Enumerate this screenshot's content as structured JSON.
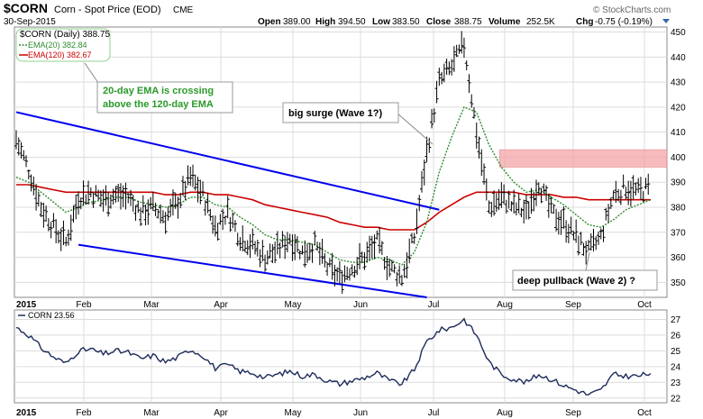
{
  "header": {
    "symbol": "$CORN",
    "description": "Corn - Spot Price (EOD)",
    "exchange": "CME",
    "date": "30-Sep-2015",
    "open_label": "Open",
    "open": "389.00",
    "high_label": "High",
    "high": "394.50",
    "low_label": "Low",
    "low": "383.50",
    "close_label": "Close",
    "close": "388.75",
    "volume_label": "Volume",
    "volume": "252.5K",
    "chg_label": "Chg",
    "chg": "-0.75 (-0.19%)",
    "watermark": "© StockCharts.com"
  },
  "colors": {
    "price": "#000000",
    "ema20": "#2e8b2e",
    "ema120": "#cc0000",
    "channel": "#0000ee",
    "zone": "#f4a4a8",
    "panel2_line": "#1c2a5a",
    "callout_text_green": "#2a9a2a"
  },
  "chart_data": [
    {
      "type": "ohlc",
      "legend": {
        "price": "$CORN (Daily) 388.75",
        "ema20": "EMA(20) 382.84",
        "ema120": "EMA(120) 382.67",
        "placement": "top-left"
      },
      "x_axis": [
        "2015",
        "Feb",
        "Mar",
        "Apr",
        "May",
        "Jun",
        "Jul",
        "Aug",
        "Sep",
        "Oct"
      ],
      "ylim": [
        344,
        452
      ],
      "yticks": [
        350,
        360,
        370,
        380,
        390,
        400,
        410,
        420,
        430,
        440,
        450
      ],
      "grid": true,
      "closes_weekly": [
        407,
        395,
        380,
        372,
        366,
        384,
        386,
        383,
        385,
        384,
        378,
        380,
        376,
        382,
        392,
        385,
        372,
        378,
        368,
        365,
        360,
        363,
        368,
        362,
        365,
        356,
        352,
        356,
        360,
        366,
        356,
        352,
        368,
        402,
        430,
        436,
        445,
        410,
        380,
        384,
        380,
        378,
        390,
        378,
        374,
        368,
        362,
        368,
        385,
        388,
        386,
        388
      ],
      "ema20_values": [
        392,
        390,
        386,
        382,
        378,
        380,
        382,
        383,
        384,
        384,
        382,
        381,
        380,
        381,
        384,
        384,
        381,
        380,
        376,
        373,
        369,
        367,
        367,
        366,
        365,
        362,
        359,
        358,
        358,
        360,
        359,
        357,
        362,
        374,
        394,
        408,
        420,
        418,
        405,
        396,
        390,
        386,
        387,
        384,
        381,
        377,
        373,
        372,
        375,
        379,
        381,
        383
      ],
      "ema120_values": [
        389,
        389,
        388,
        387,
        386,
        386,
        386,
        386,
        386,
        386,
        386,
        386,
        385,
        385,
        386,
        386,
        385,
        385,
        384,
        383,
        381,
        380,
        379,
        378,
        377,
        376,
        374,
        373,
        372,
        372,
        371,
        371,
        371,
        374,
        378,
        381,
        384,
        386,
        386,
        386,
        386,
        385,
        385,
        385,
        384,
        384,
        383,
        383,
        383,
        383,
        383,
        383
      ],
      "overlay": {
        "upper_channel": [
          [
            0,
            418
          ],
          [
            34,
            379
          ]
        ],
        "lower_channel": [
          [
            5,
            365
          ],
          [
            33,
            344
          ]
        ],
        "resistance_zone": {
          "from_week": 39,
          "to_week": 51,
          "low": 396,
          "high": 403
        }
      },
      "annotations": [
        {
          "text": [
            "20-day EMA is crossing",
            "above the 120-day EMA"
          ]
        },
        {
          "text": [
            "big surge (Wave 1?)"
          ]
        },
        {
          "text": [
            "deep pullback (Wave 2) ?"
          ]
        }
      ]
    },
    {
      "type": "line",
      "legend": {
        "label": "CORN 23.56",
        "placement": "top-left"
      },
      "ylim": [
        21.7,
        27.6
      ],
      "yticks": [
        22,
        23,
        24,
        25,
        26,
        27
      ],
      "values_weekly": [
        26.5,
        26.0,
        25.2,
        24.6,
        24.2,
        25.0,
        25.1,
        24.8,
        25.0,
        24.9,
        24.5,
        24.7,
        24.3,
        24.6,
        25.1,
        24.7,
        23.9,
        24.1,
        23.7,
        23.6,
        23.3,
        23.5,
        23.7,
        23.4,
        23.5,
        23.1,
        22.9,
        23.1,
        23.3,
        23.6,
        23.1,
        22.9,
        23.8,
        25.6,
        26.3,
        26.5,
        27.0,
        26.0,
        24.3,
        23.5,
        23.2,
        23.0,
        23.5,
        23.2,
        22.8,
        22.5,
        22.2,
        22.5,
        23.5,
        23.4,
        23.4,
        23.56
      ]
    }
  ]
}
